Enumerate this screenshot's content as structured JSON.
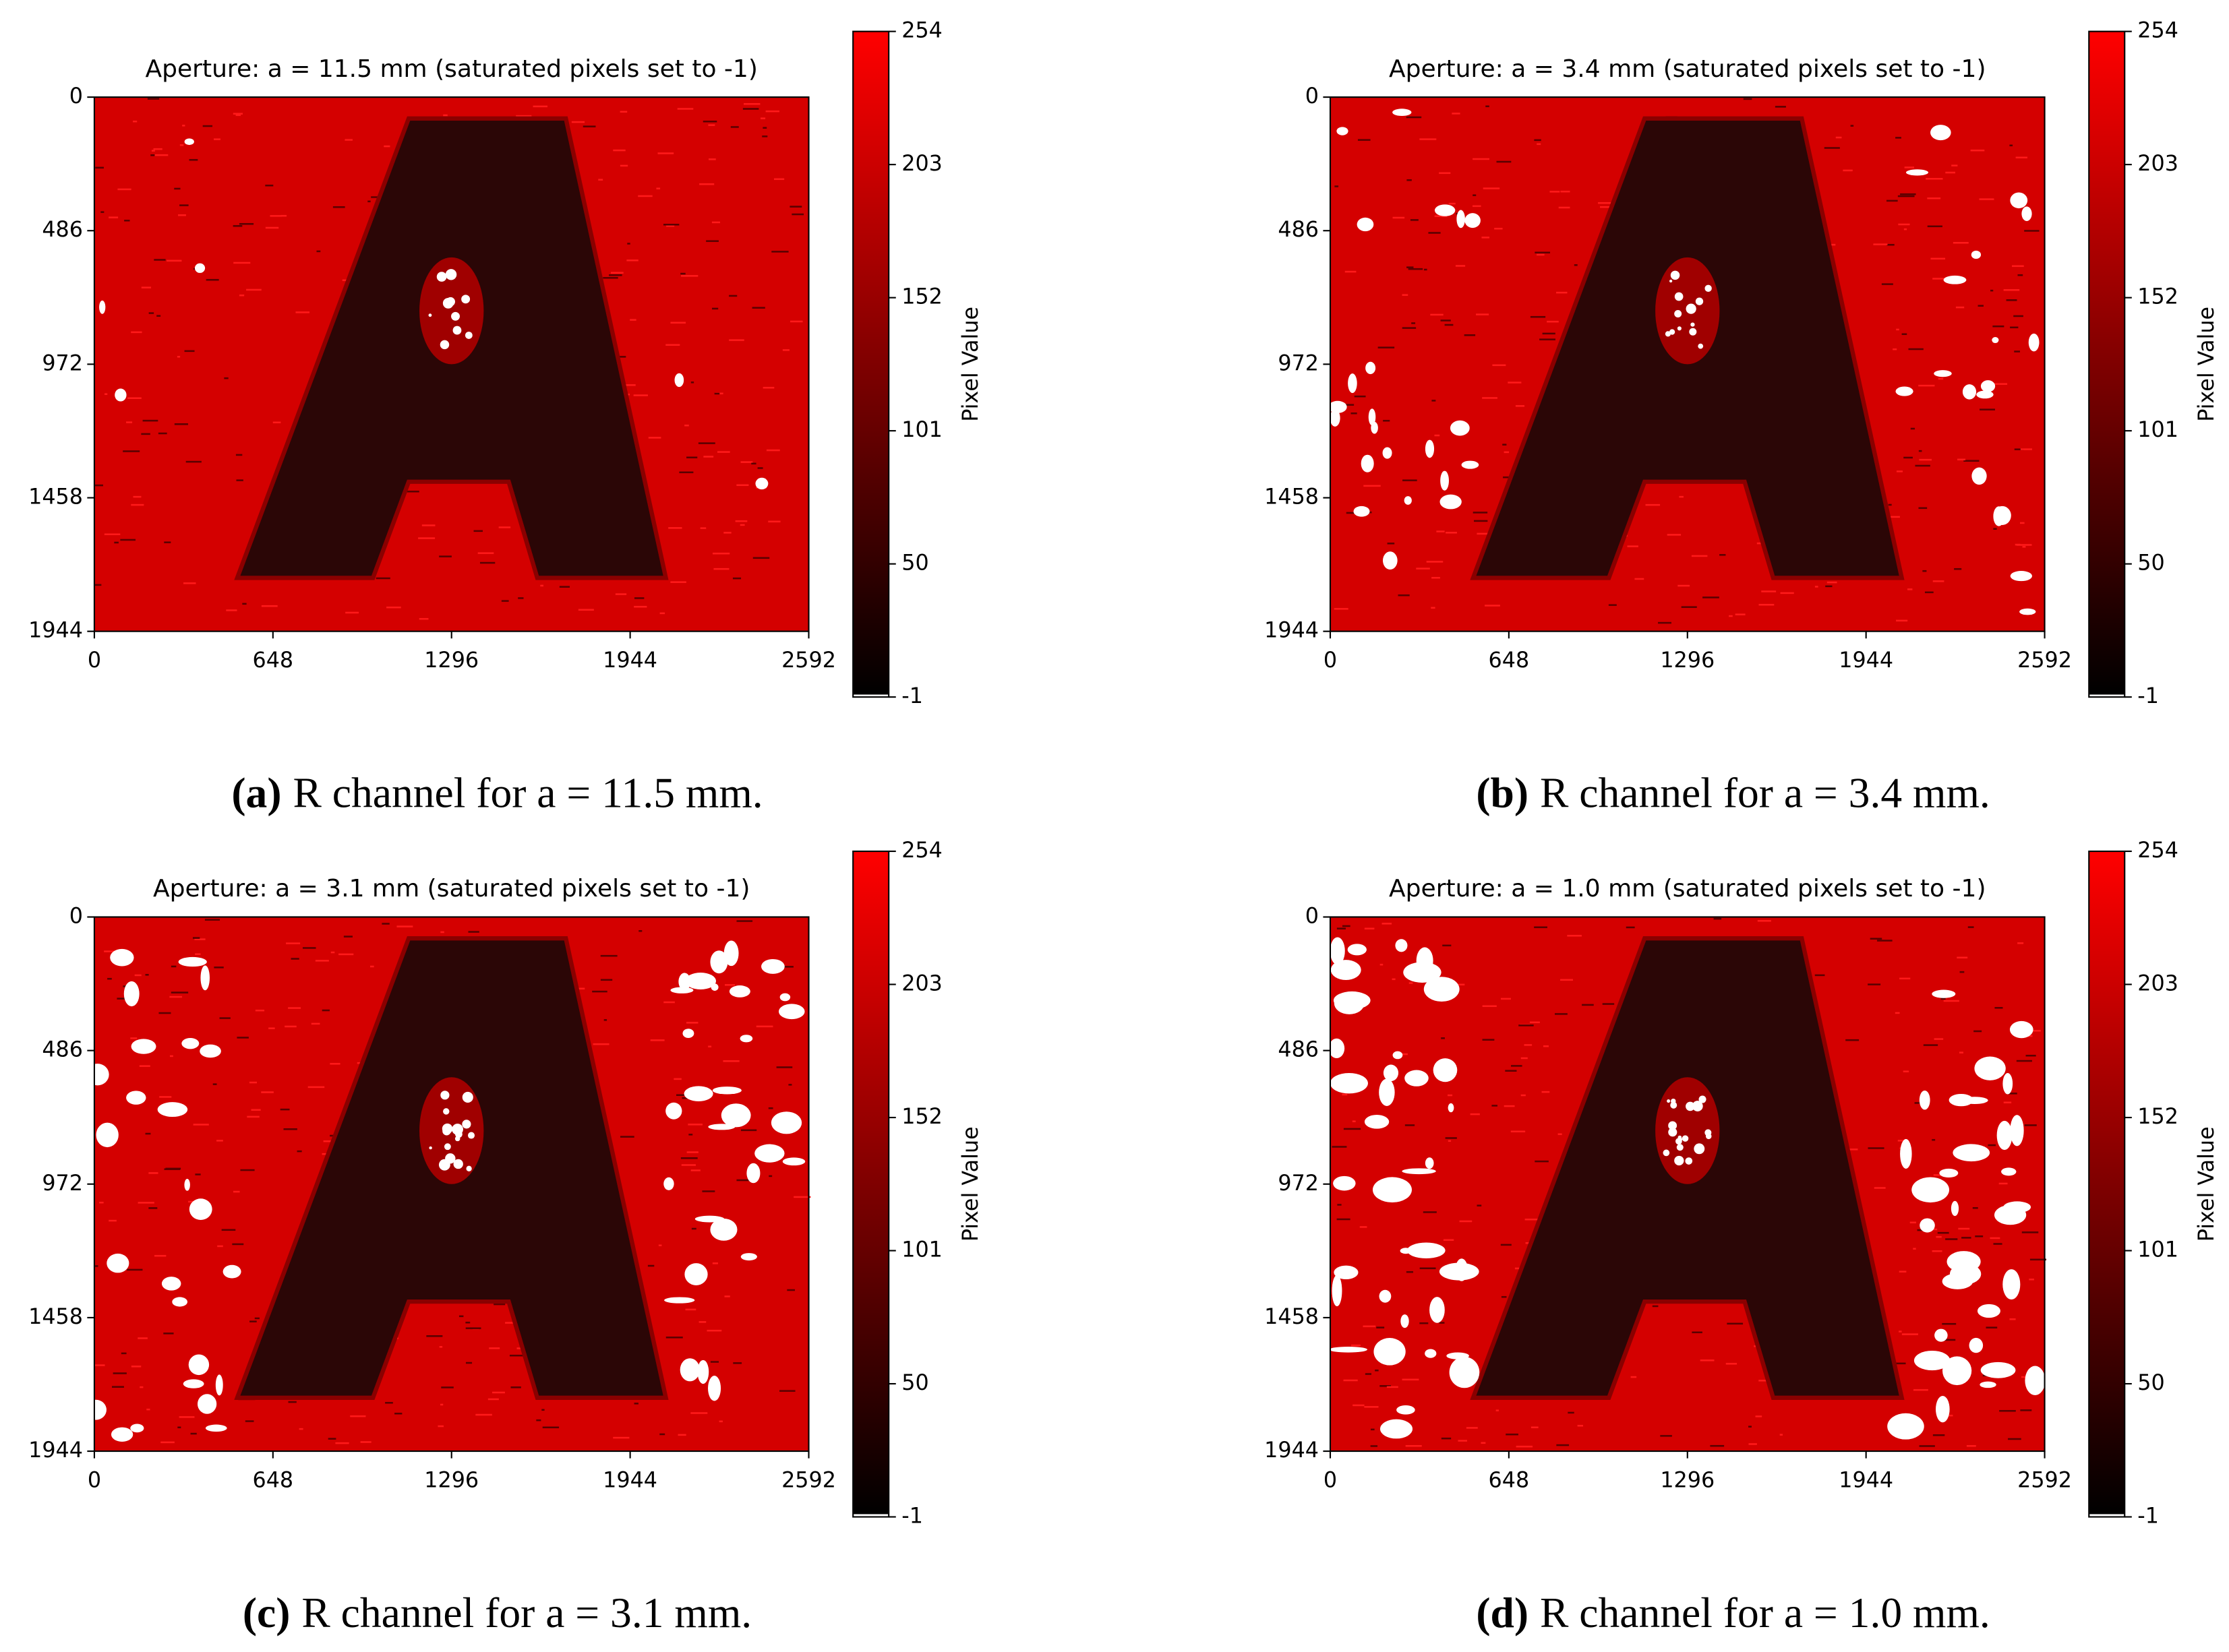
{
  "chart_data": [
    {
      "type": "image",
      "title": "Aperture: a = 11.5 mm (saturated pixels set to -1)",
      "xlim": [
        0,
        2592
      ],
      "ylim": [
        1944,
        0
      ],
      "xticks": [
        0,
        648,
        1296,
        1944,
        2592
      ],
      "yticks": [
        0,
        486,
        972,
        1458,
        1944
      ],
      "colorbar": {
        "label": "Pixel Value",
        "lim": [
          -1,
          254
        ],
        "ticks": [
          254,
          203,
          152,
          101,
          50,
          -1
        ],
        "colors": [
          "#ffffff",
          "#000000",
          "#ff0000"
        ]
      },
      "caption_label": "(a)",
      "caption": "R channel for a = 11.5 mm."
    },
    {
      "type": "image",
      "title": "Aperture: a = 3.4 mm (saturated pixels set to -1)",
      "xlim": [
        0,
        2592
      ],
      "ylim": [
        1944,
        0
      ],
      "xticks": [
        0,
        648,
        1296,
        1944,
        2592
      ],
      "yticks": [
        0,
        486,
        972,
        1458,
        1944
      ],
      "colorbar": {
        "label": "Pixel Value",
        "lim": [
          -1,
          254
        ],
        "ticks": [
          254,
          203,
          152,
          101,
          50,
          -1
        ],
        "colors": [
          "#ffffff",
          "#000000",
          "#ff0000"
        ]
      },
      "caption_label": "(b)",
      "caption": "R channel for a = 3.4 mm."
    },
    {
      "type": "image",
      "title": "Aperture: a = 3.1 mm (saturated pixels set to -1)",
      "xlim": [
        0,
        2592
      ],
      "ylim": [
        1944,
        0
      ],
      "xticks": [
        0,
        648,
        1296,
        1944,
        2592
      ],
      "yticks": [
        0,
        486,
        972,
        1458,
        1944
      ],
      "colorbar": {
        "label": "Pixel Value",
        "lim": [
          -1,
          254
        ],
        "ticks": [
          254,
          203,
          152,
          101,
          50,
          -1
        ],
        "colors": [
          "#ffffff",
          "#000000",
          "#ff0000"
        ]
      },
      "caption_label": "(c)",
      "caption": "R channel for a = 3.1 mm."
    },
    {
      "type": "image",
      "title": "Aperture: a = 1.0 mm (saturated pixels set to -1)",
      "xlim": [
        0,
        2592
      ],
      "ylim": [
        1944,
        0
      ],
      "xticks": [
        0,
        648,
        1296,
        1944,
        2592
      ],
      "yticks": [
        0,
        486,
        972,
        1458,
        1944
      ],
      "colorbar": {
        "label": "Pixel Value",
        "lim": [
          -1,
          254
        ],
        "ticks": [
          254,
          203,
          152,
          101,
          50,
          -1
        ],
        "colors": [
          "#ffffff",
          "#000000",
          "#ff0000"
        ]
      },
      "caption_label": "(d)",
      "caption": "R channel for a = 1.0 mm."
    }
  ]
}
